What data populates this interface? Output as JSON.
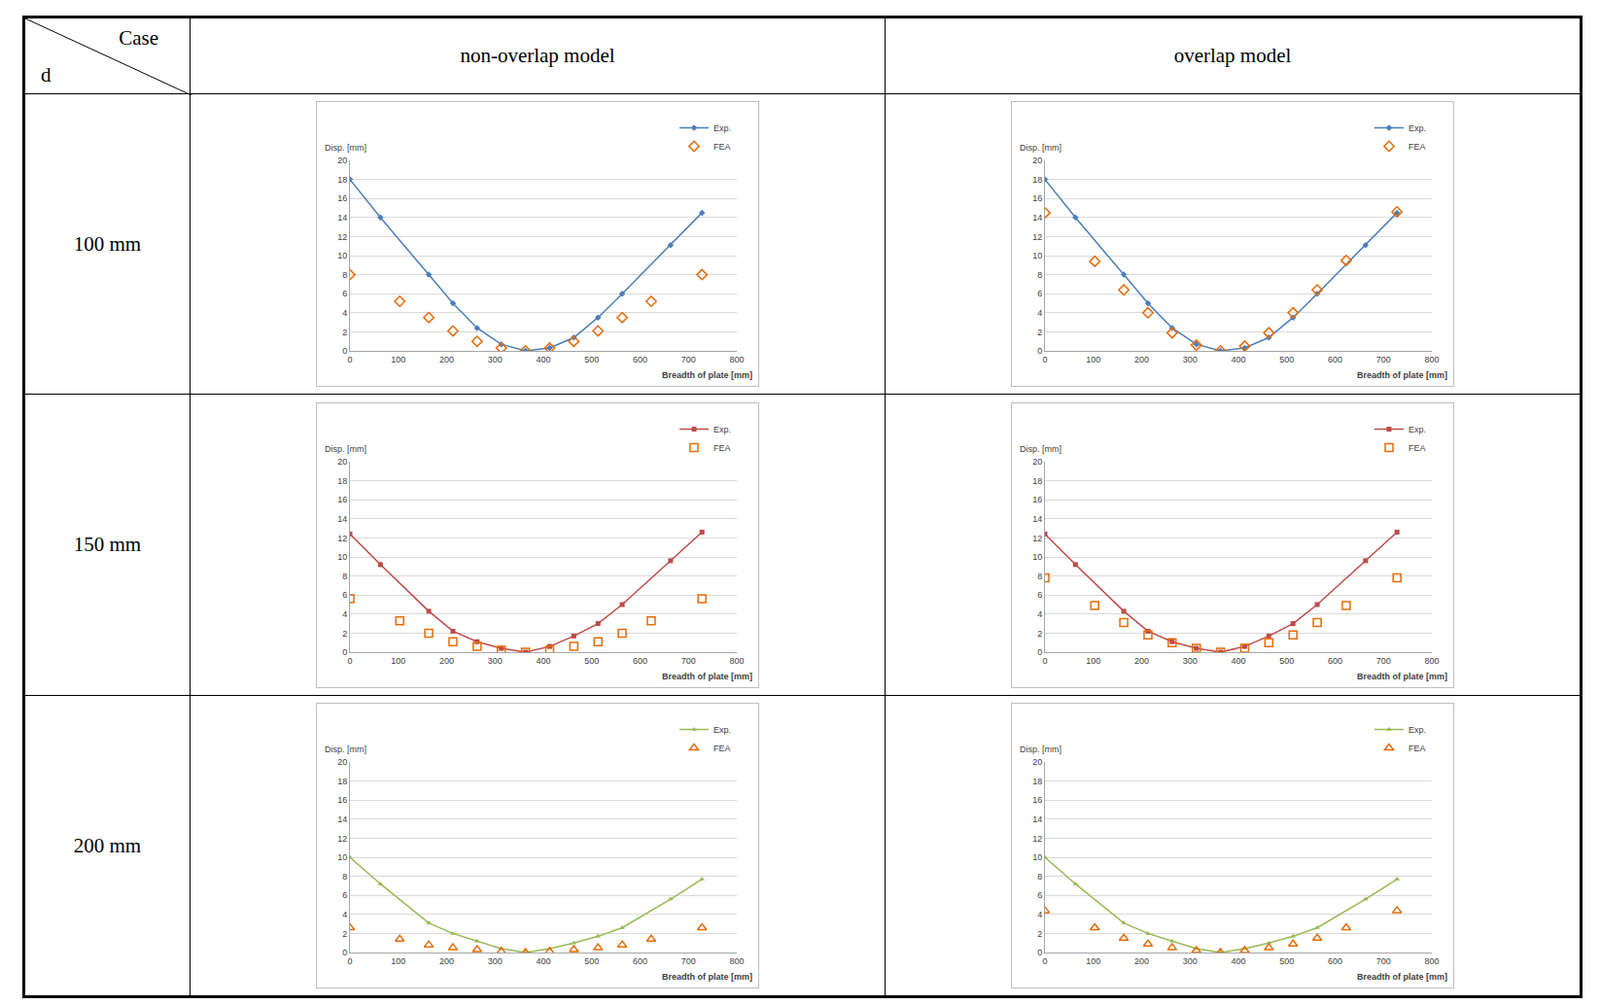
{
  "table": {
    "corner": {
      "column": "Case",
      "row": "d"
    },
    "columns": [
      "non-overlap model",
      "overlap model"
    ],
    "rows": [
      "100 mm",
      "150 mm",
      "200 mm"
    ]
  },
  "chart_data": [
    {
      "type": "scatter",
      "x_label": "Breadth of plate [mm]",
      "y_label": "Disp. [mm]",
      "xlim": [
        0,
        800
      ],
      "xticks": [
        0,
        100,
        200,
        300,
        400,
        500,
        600,
        700,
        800
      ],
      "ylim": [
        0,
        20
      ],
      "yticks": [
        0,
        2,
        4,
        6,
        8,
        10,
        12,
        14,
        16,
        18,
        20
      ],
      "grid": true,
      "legend": "top right",
      "series": [
        {
          "name": "Exp.",
          "type": "line",
          "color": "#4a7ebb",
          "marker": "diamond",
          "line_style": "solid",
          "x": [
            0,
            63,
            163,
            213,
            263,
            313,
            363,
            413,
            463,
            513,
            563,
            663,
            728
          ],
          "values": [
            18,
            14,
            8,
            5,
            2.4,
            0.7,
            0,
            0.3,
            1.4,
            3.5,
            6,
            11.1,
            14.5
          ]
        },
        {
          "name": "FEA",
          "type": "scatter",
          "color": "#e46c0a",
          "marker": "diamond-open",
          "x": [
            0,
            103,
            163,
            213,
            263,
            313,
            363,
            413,
            463,
            513,
            563,
            623,
            728
          ],
          "values": [
            8,
            5.2,
            3.5,
            2.1,
            1,
            0.3,
            0,
            0.3,
            1,
            2.1,
            3.5,
            5.2,
            8
          ]
        }
      ]
    },
    {
      "type": "scatter",
      "x_label": "Breadth of plate [mm]",
      "y_label": "Disp. [mm]",
      "xlim": [
        0,
        800
      ],
      "xticks": [
        0,
        100,
        200,
        300,
        400,
        500,
        600,
        700,
        800
      ],
      "ylim": [
        0,
        20
      ],
      "yticks": [
        0,
        2,
        4,
        6,
        8,
        10,
        12,
        14,
        16,
        18,
        20
      ],
      "grid": true,
      "legend": "top right",
      "series": [
        {
          "name": "Exp.",
          "type": "line",
          "color": "#4a7ebb",
          "marker": "diamond",
          "line_style": "solid",
          "x": [
            0,
            63,
            163,
            213,
            263,
            313,
            363,
            413,
            463,
            513,
            563,
            663,
            728
          ],
          "values": [
            18,
            14,
            8,
            5,
            2.4,
            0.7,
            0,
            0.3,
            1.4,
            3.5,
            6,
            11.1,
            14.5
          ]
        },
        {
          "name": "FEA",
          "type": "scatter",
          "color": "#e46c0a",
          "marker": "diamond-open",
          "x": [
            0,
            103,
            163,
            213,
            263,
            313,
            363,
            413,
            463,
            513,
            563,
            623,
            728
          ],
          "values": [
            14.5,
            9.4,
            6.4,
            4,
            1.9,
            0.6,
            0,
            0.5,
            1.9,
            4,
            6.4,
            9.5,
            14.6
          ]
        }
      ]
    },
    {
      "type": "scatter",
      "x_label": "Breadth of plate [mm]",
      "y_label": "Disp. [mm]",
      "xlim": [
        0,
        800
      ],
      "xticks": [
        0,
        100,
        200,
        300,
        400,
        500,
        600,
        700,
        800
      ],
      "ylim": [
        0,
        20
      ],
      "yticks": [
        0,
        2,
        4,
        6,
        8,
        10,
        12,
        14,
        16,
        18,
        20
      ],
      "grid": true,
      "legend": "top right",
      "series": [
        {
          "name": "Exp.",
          "type": "line",
          "color": "#be4b48",
          "marker": "square",
          "line_style": "solid",
          "x": [
            0,
            63,
            163,
            213,
            263,
            313,
            363,
            413,
            463,
            513,
            563,
            663,
            728
          ],
          "values": [
            12.4,
            9.2,
            4.3,
            2.2,
            1.1,
            0.4,
            0,
            0.6,
            1.7,
            3,
            5,
            9.6,
            12.6
          ]
        },
        {
          "name": "FEA",
          "type": "scatter",
          "color": "#e46c0a",
          "marker": "square-open",
          "x": [
            0,
            103,
            163,
            213,
            263,
            313,
            363,
            413,
            463,
            513,
            563,
            623,
            728
          ],
          "values": [
            5.6,
            3.3,
            2,
            1.1,
            0.6,
            0.2,
            0,
            0.2,
            0.6,
            1.1,
            2,
            3.3,
            5.6
          ]
        }
      ]
    },
    {
      "type": "scatter",
      "x_label": "Breadth of plate [mm]",
      "y_label": "Disp. [mm]",
      "xlim": [
        0,
        800
      ],
      "xticks": [
        0,
        100,
        200,
        300,
        400,
        500,
        600,
        700,
        800
      ],
      "ylim": [
        0,
        20
      ],
      "yticks": [
        0,
        2,
        4,
        6,
        8,
        10,
        12,
        14,
        16,
        18,
        20
      ],
      "grid": true,
      "legend": "top right",
      "series": [
        {
          "name": "Exp.",
          "type": "line",
          "color": "#be4b48",
          "marker": "square",
          "line_style": "solid",
          "x": [
            0,
            63,
            163,
            213,
            263,
            313,
            363,
            413,
            463,
            513,
            563,
            663,
            728
          ],
          "values": [
            12.4,
            9.2,
            4.3,
            2.2,
            1.1,
            0.4,
            0,
            0.6,
            1.7,
            3,
            5,
            9.6,
            12.6
          ]
        },
        {
          "name": "FEA",
          "type": "scatter",
          "color": "#e46c0a",
          "marker": "square-open",
          "x": [
            0,
            103,
            163,
            213,
            263,
            313,
            363,
            413,
            463,
            513,
            563,
            623,
            728
          ],
          "values": [
            7.8,
            4.9,
            3.1,
            1.8,
            1,
            0.4,
            0,
            0.4,
            1,
            1.8,
            3.1,
            4.9,
            7.8
          ]
        }
      ]
    },
    {
      "type": "scatter",
      "x_label": "Breadth of plate [mm]",
      "y_label": "Disp. [mm]",
      "xlim": [
        0,
        800
      ],
      "xticks": [
        0,
        100,
        200,
        300,
        400,
        500,
        600,
        700,
        800
      ],
      "ylim": [
        0,
        20
      ],
      "yticks": [
        0,
        2,
        4,
        6,
        8,
        10,
        12,
        14,
        16,
        18,
        20
      ],
      "grid": true,
      "legend": "top right",
      "series": [
        {
          "name": "Exp.",
          "type": "line",
          "color": "#98b954",
          "marker": "triangle-up",
          "line_style": "solid",
          "x": [
            0,
            63,
            163,
            213,
            263,
            313,
            363,
            413,
            463,
            513,
            563,
            663,
            728
          ],
          "values": [
            10,
            7.2,
            3.1,
            2,
            1.2,
            0.4,
            0,
            0.4,
            1,
            1.7,
            2.6,
            5.6,
            7.7
          ]
        },
        {
          "name": "FEA",
          "type": "scatter",
          "color": "#e46c0a",
          "marker": "triangle-up-open",
          "x": [
            0,
            103,
            163,
            213,
            263,
            313,
            363,
            413,
            463,
            513,
            563,
            623,
            728
          ],
          "values": [
            2.6,
            1.4,
            0.8,
            0.5,
            0.3,
            0.1,
            0,
            0.1,
            0.3,
            0.5,
            0.8,
            1.4,
            2.6
          ]
        }
      ]
    },
    {
      "type": "scatter",
      "x_label": "Breadth of plate [mm]",
      "y_label": "Disp. [mm]",
      "xlim": [
        0,
        800
      ],
      "xticks": [
        0,
        100,
        200,
        300,
        400,
        500,
        600,
        700,
        800
      ],
      "ylim": [
        0,
        20
      ],
      "yticks": [
        0,
        2,
        4,
        6,
        8,
        10,
        12,
        14,
        16,
        18,
        20
      ],
      "grid": true,
      "legend": "top right",
      "series": [
        {
          "name": "Exp.",
          "type": "line",
          "color": "#98b954",
          "marker": "triangle-up",
          "line_style": "solid",
          "x": [
            0,
            63,
            163,
            213,
            263,
            313,
            363,
            413,
            463,
            513,
            563,
            663,
            728
          ],
          "values": [
            10,
            7.2,
            3.1,
            2,
            1.2,
            0.4,
            0,
            0.4,
            1,
            1.7,
            2.6,
            5.6,
            7.7
          ]
        },
        {
          "name": "FEA",
          "type": "scatter",
          "color": "#e46c0a",
          "marker": "triangle-up-open",
          "x": [
            0,
            103,
            163,
            213,
            263,
            313,
            363,
            413,
            463,
            513,
            563,
            623,
            728
          ],
          "values": [
            4.4,
            2.6,
            1.5,
            0.9,
            0.5,
            0.2,
            0,
            0.2,
            0.5,
            0.9,
            1.5,
            2.6,
            4.4
          ]
        }
      ]
    }
  ]
}
